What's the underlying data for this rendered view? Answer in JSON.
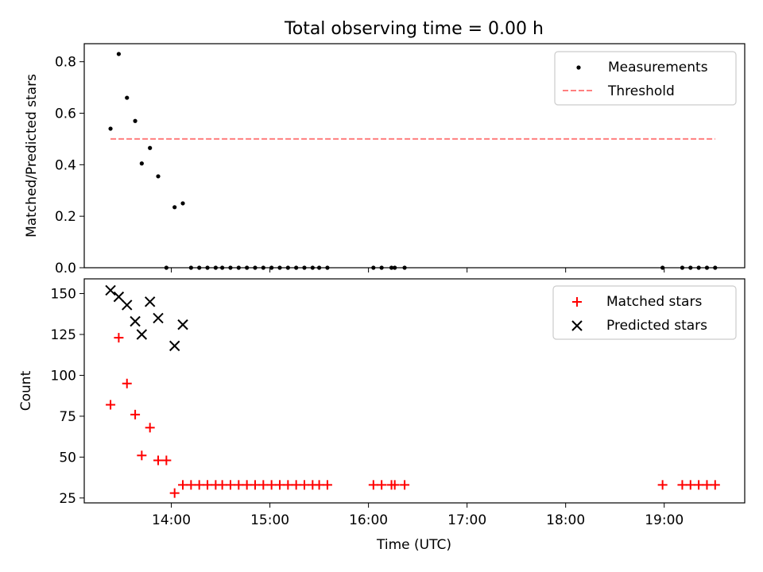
{
  "figure": {
    "title": "Total observing time = 0.00 h",
    "colors": {
      "measurement": "#000000",
      "threshold": "#ff7f7f",
      "matched": "#ff0000",
      "predicted": "#000000"
    }
  },
  "chart_data": [
    {
      "type": "scatter",
      "title": "Total observing time = 0.00 h",
      "xlabel": "",
      "ylabel": "Matched/Predicted stars",
      "xlim": [
        "13:07",
        "19:49"
      ],
      "ylim": [
        0,
        0.87
      ],
      "yticks": [
        "0.0",
        "0.2",
        "0.4",
        "0.6",
        "0.8"
      ],
      "grid": false,
      "legend_position": "upper-right",
      "series": [
        {
          "name": "Measurements",
          "marker": "dot",
          "points": [
            [
              "13:23",
              0.54
            ],
            [
              "13:28",
              0.83
            ],
            [
              "13:33",
              0.66
            ],
            [
              "13:38",
              0.57
            ],
            [
              "13:42",
              0.405
            ],
            [
              "13:47",
              0.465
            ],
            [
              "13:52",
              0.355
            ],
            [
              "13:57",
              0.0
            ],
            [
              "14:02",
              0.235
            ],
            [
              "14:07",
              0.25
            ],
            [
              "14:12",
              0.0
            ],
            [
              "14:17",
              0.0
            ],
            [
              "14:22",
              0.0
            ],
            [
              "14:27",
              0.0
            ],
            [
              "14:31",
              0.0
            ],
            [
              "14:36",
              0.0
            ],
            [
              "14:41",
              0.0
            ],
            [
              "14:46",
              0.0
            ],
            [
              "14:51",
              0.0
            ],
            [
              "14:56",
              0.0
            ],
            [
              "15:01",
              0.0
            ],
            [
              "15:06",
              0.0
            ],
            [
              "15:11",
              0.0
            ],
            [
              "15:16",
              0.0
            ],
            [
              "15:21",
              0.0
            ],
            [
              "15:26",
              0.0
            ],
            [
              "15:30",
              0.0
            ],
            [
              "15:35",
              0.0
            ],
            [
              "16:03",
              0.0
            ],
            [
              "16:08",
              0.0
            ],
            [
              "16:14",
              0.0
            ],
            [
              "16:16",
              0.0
            ],
            [
              "16:22",
              0.0
            ],
            [
              "18:59",
              0.0
            ],
            [
              "19:11",
              0.0
            ],
            [
              "19:16",
              0.0
            ],
            [
              "19:21",
              0.0
            ],
            [
              "19:26",
              0.0
            ],
            [
              "19:31",
              0.0
            ]
          ]
        },
        {
          "name": "Threshold",
          "marker": "dashed-line",
          "points": [
            [
              "13:23",
              0.5
            ],
            [
              "19:31",
              0.5
            ]
          ]
        }
      ]
    },
    {
      "type": "scatter",
      "title": "",
      "xlabel": "Time (UTC)",
      "ylabel": "Count",
      "xlim": [
        "13:07",
        "19:49"
      ],
      "ylim": [
        22,
        159
      ],
      "xticks": [
        "14:00",
        "15:00",
        "16:00",
        "17:00",
        "18:00",
        "19:00"
      ],
      "yticks": [
        "25",
        "50",
        "75",
        "100",
        "125",
        "150"
      ],
      "grid": false,
      "legend_position": "upper-right",
      "series": [
        {
          "name": "Matched stars",
          "marker": "plus",
          "points": [
            [
              "13:23",
              82
            ],
            [
              "13:28",
              123
            ],
            [
              "13:33",
              95
            ],
            [
              "13:38",
              76
            ],
            [
              "13:42",
              51
            ],
            [
              "13:47",
              68
            ],
            [
              "13:52",
              48
            ],
            [
              "13:57",
              48
            ],
            [
              "14:02",
              28
            ],
            [
              "14:07",
              33
            ],
            [
              "14:12",
              33
            ],
            [
              "14:17",
              33
            ],
            [
              "14:22",
              33
            ],
            [
              "14:27",
              33
            ],
            [
              "14:31",
              33
            ],
            [
              "14:36",
              33
            ],
            [
              "14:41",
              33
            ],
            [
              "14:46",
              33
            ],
            [
              "14:51",
              33
            ],
            [
              "14:56",
              33
            ],
            [
              "15:01",
              33
            ],
            [
              "15:06",
              33
            ],
            [
              "15:11",
              33
            ],
            [
              "15:16",
              33
            ],
            [
              "15:21",
              33
            ],
            [
              "15:26",
              33
            ],
            [
              "15:30",
              33
            ],
            [
              "15:35",
              33
            ],
            [
              "16:03",
              33
            ],
            [
              "16:08",
              33
            ],
            [
              "16:14",
              33
            ],
            [
              "16:16",
              33
            ],
            [
              "16:22",
              33
            ],
            [
              "18:59",
              33
            ],
            [
              "19:11",
              33
            ],
            [
              "19:16",
              33
            ],
            [
              "19:21",
              33
            ],
            [
              "19:26",
              33
            ],
            [
              "19:31",
              33
            ]
          ]
        },
        {
          "name": "Predicted stars",
          "marker": "x",
          "points": [
            [
              "13:23",
              152
            ],
            [
              "13:28",
              148
            ],
            [
              "13:33",
              143
            ],
            [
              "13:38",
              133
            ],
            [
              "13:42",
              125
            ],
            [
              "13:47",
              145
            ],
            [
              "13:52",
              135
            ],
            [
              "14:02",
              118
            ],
            [
              "14:07",
              131
            ]
          ]
        }
      ]
    }
  ]
}
